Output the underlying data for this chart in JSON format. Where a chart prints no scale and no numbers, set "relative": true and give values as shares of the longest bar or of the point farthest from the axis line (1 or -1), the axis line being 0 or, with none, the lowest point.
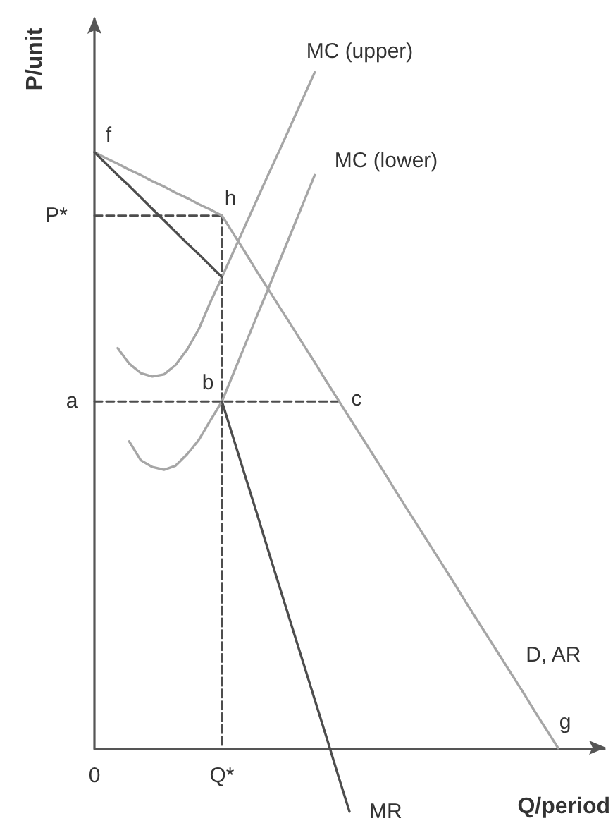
{
  "chart_data": {
    "type": "line",
    "relative": true,
    "xlabel": "Q/period",
    "ylabel": "P/unit",
    "categories": [
      "0",
      null,
      null,
      null,
      null,
      null,
      null,
      null,
      null,
      null,
      null,
      "Q*",
      null,
      null,
      null,
      null,
      null,
      null,
      null,
      null,
      null,
      null,
      null,
      null,
      null,
      null,
      null,
      null,
      null,
      null,
      null,
      null,
      null,
      null,
      null,
      null,
      null,
      null,
      null,
      null,
      null,
      null,
      null,
      null,
      null
    ],
    "series": [
      {
        "name": "MC (upper)",
        "color": "#a6a6a6",
        "values": [
          null,
          null,
          0.592,
          0.569,
          0.555,
          0.55,
          0.553,
          0.567,
          0.59,
          0.62,
          0.66,
          0.697,
          0.735,
          0.773,
          0.811,
          0.849,
          0.886,
          0.924,
          0.962,
          1.0,
          null,
          null,
          null,
          null,
          null,
          null,
          null,
          null,
          null,
          null,
          null,
          null,
          null,
          null,
          null,
          null,
          null,
          null,
          null,
          null,
          null,
          null,
          null,
          null,
          null
        ]
      },
      {
        "name": "MC (lower)",
        "color": "#a6a6a6",
        "values": [
          null,
          null,
          null,
          0.454,
          0.426,
          0.416,
          0.412,
          0.418,
          0.435,
          0.456,
          0.485,
          0.513,
          0.555,
          0.597,
          0.639,
          0.68,
          0.722,
          0.764,
          0.806,
          0.848,
          null,
          null,
          null,
          null,
          null,
          null,
          null,
          null,
          null,
          null,
          null,
          null,
          null,
          null,
          null,
          null,
          null,
          null,
          null,
          null,
          null,
          null,
          null,
          null,
          null
        ]
      },
      {
        "name": "D, AR",
        "color": "#a6a6a6",
        "values": [
          0.882,
          0.873,
          0.865,
          0.856,
          0.848,
          0.839,
          0.831,
          0.822,
          0.814,
          0.805,
          0.797,
          0.788,
          0.761,
          0.734,
          0.706,
          0.679,
          0.652,
          0.625,
          0.598,
          0.571,
          0.543,
          0.516,
          0.489,
          0.462,
          0.435,
          0.408,
          0.38,
          0.353,
          0.326,
          0.299,
          0.272,
          0.245,
          0.217,
          0.19,
          0.163,
          0.136,
          0.109,
          0.082,
          0.054,
          0.027,
          0,
          null,
          null,
          null,
          null
        ]
      },
      {
        "color": "#4d4d4d",
        "values": [
          0.882,
          0.865,
          0.848,
          0.832,
          0.815,
          0.798,
          0.781,
          0.764,
          0.747,
          0.731,
          0.714,
          0.697,
          null,
          null,
          null,
          null,
          null,
          null,
          null,
          null,
          null,
          null,
          null,
          null,
          null,
          null,
          null,
          null,
          null,
          null,
          null,
          null,
          null,
          null,
          null,
          null,
          null,
          null,
          null,
          null,
          null,
          null,
          null,
          null,
          null
        ]
      },
      {
        "name": "MR",
        "color": "#4d4d4d",
        "values": [
          null,
          null,
          null,
          null,
          null,
          null,
          null,
          null,
          null,
          null,
          null,
          0.513,
          0.458,
          0.403,
          0.348,
          0.292,
          0.237,
          0.182,
          0.127,
          0.072,
          0.017,
          -0.039,
          -0.094,
          null,
          null,
          null,
          null,
          null,
          null,
          null,
          null,
          null,
          null,
          null,
          null,
          null,
          null,
          null,
          null,
          null,
          null,
          null,
          null,
          null,
          null
        ]
      },
      {
        "color": "#4d4d4d",
        "line_style": "dashed",
        "values": [
          0.788,
          0.788,
          0.788,
          0.788,
          0.788,
          0.788,
          0.788,
          0.788,
          0.788,
          0.788,
          0.788,
          0.788,
          null,
          null,
          null,
          null,
          null,
          null,
          null,
          null,
          null,
          null,
          null,
          null,
          null,
          null,
          null,
          null,
          null,
          null,
          null,
          null,
          null,
          null,
          null,
          null,
          null,
          null,
          null,
          null,
          null,
          null,
          null,
          null,
          null
        ]
      },
      {
        "color": "#4d4d4d",
        "line_style": "dashed",
        "x": [
          "Q*",
          "Q*"
        ],
        "values": [
          0.788,
          0
        ]
      },
      {
        "color": "#4d4d4d",
        "line_style": "dashed",
        "values": [
          0.513,
          0.513,
          0.513,
          0.513,
          0.513,
          0.513,
          0.513,
          0.513,
          0.513,
          0.513,
          0.513,
          0.513,
          0.513,
          0.513,
          0.513,
          0.513,
          0.513,
          0.513,
          0.513,
          0.513,
          0.513,
          0.513,
          null,
          null,
          null,
          null,
          null,
          null,
          null,
          null,
          null,
          null,
          null,
          null,
          null,
          null,
          null,
          null,
          null,
          null,
          null,
          null,
          null,
          null,
          null
        ]
      }
    ],
    "annotations": [
      {
        "text": "f",
        "x": "0",
        "y": 0.882
      },
      {
        "text": "h",
        "x": "Q*",
        "y": 0.788
      },
      {
        "text": "b",
        "x": "Q*",
        "y": 0.513
      },
      "c",
      "g",
      {
        "text": "P*",
        "x": "0",
        "y": 0.788
      },
      {
        "text": "a",
        "x": "0",
        "y": 0.513
      }
    ],
    "grid": false,
    "legend": false,
    "line_style": "solid"
  }
}
